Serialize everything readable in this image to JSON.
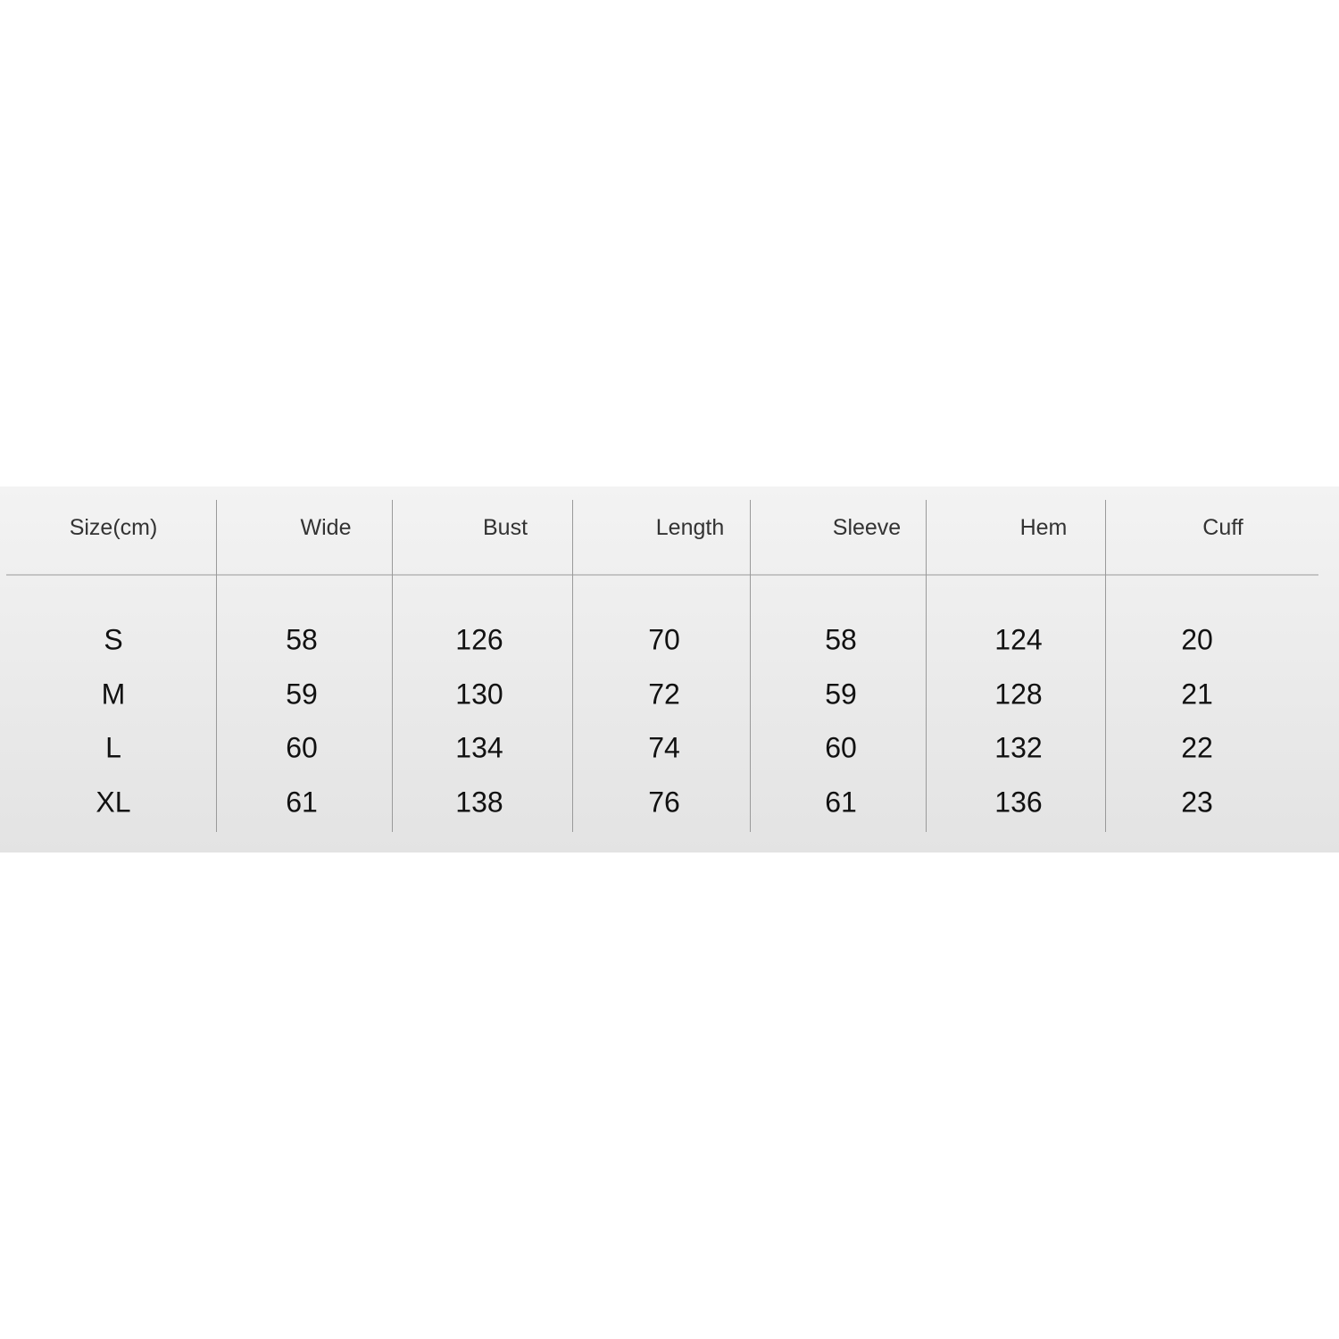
{
  "table": {
    "headers": [
      "Size(cm)",
      "Wide",
      "Bust",
      "Length",
      "Sleeve",
      "Hem",
      "Cuff"
    ],
    "rows": [
      [
        "S",
        "58",
        "126",
        "70",
        "58",
        "124",
        "20"
      ],
      [
        "M",
        "59",
        "130",
        "72",
        "59",
        "128",
        "21"
      ],
      [
        "L",
        "60",
        "134",
        "74",
        "60",
        "132",
        "22"
      ],
      [
        "XL",
        "61",
        "138",
        "76",
        "61",
        "136",
        "23"
      ]
    ]
  }
}
